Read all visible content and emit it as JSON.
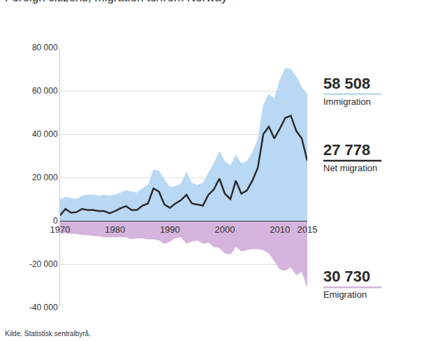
{
  "chart_data": {
    "type": "area",
    "title": "Foreign citizens, migration to/from Norway",
    "source": "Kilde. Statistisk sentralbyrå.",
    "x": [
      1970,
      1971,
      1972,
      1973,
      1974,
      1975,
      1976,
      1977,
      1978,
      1979,
      1980,
      1981,
      1982,
      1983,
      1984,
      1985,
      1986,
      1987,
      1988,
      1989,
      1990,
      1991,
      1992,
      1993,
      1994,
      1995,
      1996,
      1997,
      1998,
      1999,
      2000,
      2001,
      2002,
      2003,
      2004,
      2005,
      2006,
      2007,
      2008,
      2009,
      2010,
      2011,
      2012,
      2013,
      2014,
      2015
    ],
    "xlim": [
      1970,
      2015
    ],
    "xticks": [
      1970,
      1980,
      1990,
      2000,
      2010,
      2015
    ],
    "ylim": [
      -40000,
      80000
    ],
    "yticks": [
      {
        "value": -40000,
        "label": "-40 000"
      },
      {
        "value": -20000,
        "label": "-20 000"
      },
      0,
      {
        "value": 20000,
        "label": "20 000"
      },
      {
        "value": 40000,
        "label": "40 000"
      },
      {
        "value": 60000,
        "label": "60 000"
      },
      {
        "value": 80000,
        "label": "80 000"
      }
    ],
    "grid": true,
    "series": [
      {
        "name": "Immigration",
        "type": "area",
        "color": "#b9d8f3",
        "last_value_label": "58 508",
        "values": [
          10000,
          11000,
          10500,
          10000,
          11500,
          12000,
          12000,
          11500,
          12000,
          11500,
          12000,
          13000,
          14000,
          13500,
          13000,
          15000,
          16500,
          23500,
          23000,
          19000,
          15500,
          16000,
          17000,
          22500,
          17500,
          16500,
          17500,
          22000,
          26500,
          32000,
          27500,
          25500,
          30500,
          26500,
          27500,
          31500,
          37500,
          53500,
          58500,
          56500,
          65000,
          70500,
          70000,
          66500,
          61500,
          58508
        ]
      },
      {
        "name": "Emigration",
        "type": "area",
        "color": "#d5b4dd",
        "last_value_label": "30 730",
        "values": [
          -6000,
          -5500,
          -6000,
          -6000,
          -6500,
          -6500,
          -7000,
          -7000,
          -7500,
          -7500,
          -7500,
          -7500,
          -7500,
          -8500,
          -8000,
          -8000,
          -8500,
          -8500,
          -9000,
          -10500,
          -9500,
          -8000,
          -7500,
          -10500,
          -9500,
          -9000,
          -10500,
          -10000,
          -12000,
          -12500,
          -15000,
          -15500,
          -12000,
          -14000,
          -13500,
          -13000,
          -13000,
          -13500,
          -15000,
          -18500,
          -22500,
          -23000,
          -21500,
          -25000,
          -23500,
          -30730
        ]
      },
      {
        "name": "Net migration",
        "type": "line",
        "color": "#2b2b2b",
        "last_value_label": "27 778",
        "values": [
          2500,
          5500,
          3700,
          4000,
          5500,
          5000,
          5000,
          4500,
          4500,
          3500,
          4500,
          5800,
          6800,
          5000,
          5000,
          7000,
          8000,
          15000,
          13500,
          7500,
          6000,
          8000,
          9500,
          12000,
          8000,
          7500,
          7000,
          12000,
          14500,
          19500,
          12500,
          10000,
          18500,
          12500,
          14000,
          18500,
          24500,
          40000,
          43500,
          38000,
          42500,
          47500,
          48500,
          41500,
          38000,
          27778
        ]
      }
    ]
  }
}
